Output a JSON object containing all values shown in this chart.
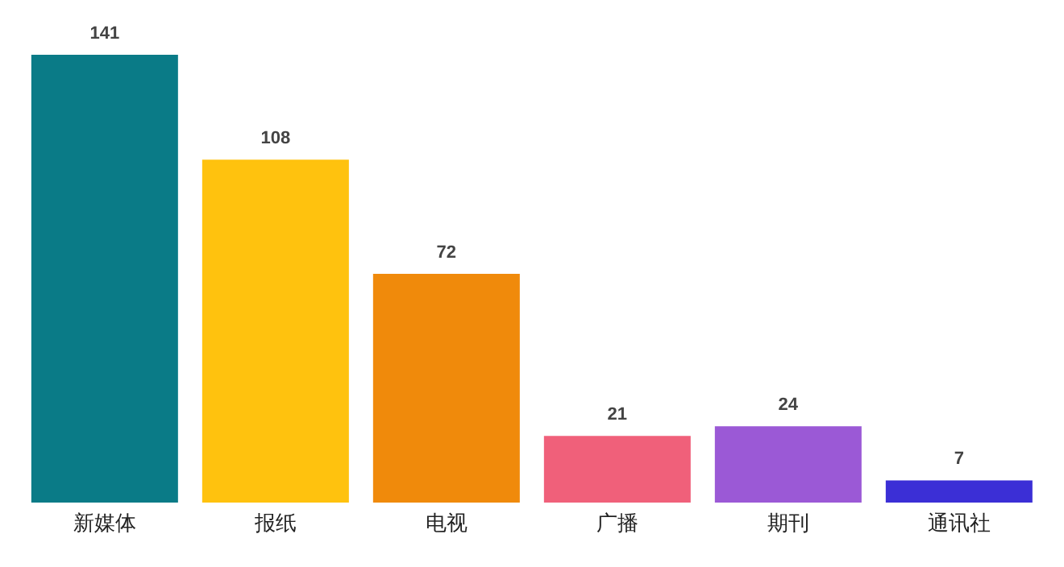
{
  "chart_data": {
    "type": "bar",
    "categories": [
      "新媒体",
      "报纸",
      "电视",
      "广播",
      "期刊",
      "通讯社"
    ],
    "values": [
      141,
      108,
      72,
      21,
      24,
      7
    ],
    "colors": [
      "#0a7b87",
      "#ffc20e",
      "#f08a0b",
      "#f0607a",
      "#9b59d6",
      "#3b2fd6"
    ],
    "data_labels": true,
    "tick_labels": "x",
    "grid": false,
    "legend": false
  }
}
